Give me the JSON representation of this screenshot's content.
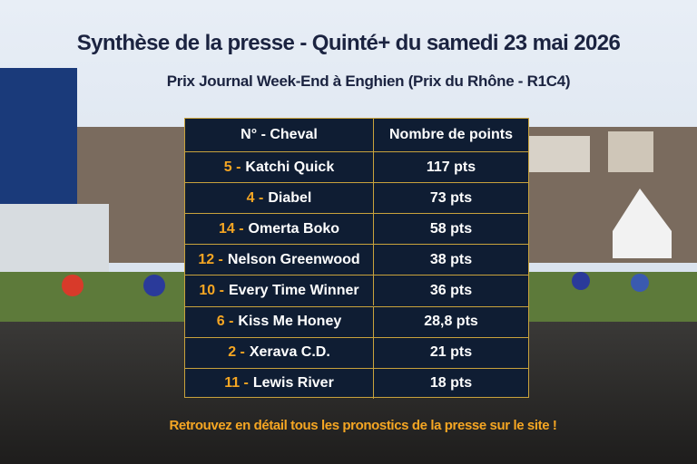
{
  "header": {
    "title": "Synthèse de la presse - Quinté+ du samedi 23 mai 2026",
    "subtitle": "Prix Journal Week-End à Enghien (Prix du Rhône - R1C4)"
  },
  "table": {
    "columns": [
      "N° - Cheval",
      "Nombre de points"
    ],
    "rows": [
      {
        "number": "5 -",
        "horse": "Katchi Quick",
        "points": "117 pts"
      },
      {
        "number": "4 -",
        "horse": "Diabel",
        "points": "73 pts"
      },
      {
        "number": "14 -",
        "horse": "Omerta Boko",
        "points": "58 pts"
      },
      {
        "number": "12 -",
        "horse": "Nelson Greenwood",
        "points": "38 pts"
      },
      {
        "number": "10 -",
        "horse": "Every Time Winner",
        "points": "36 pts"
      },
      {
        "number": "6 -",
        "horse": "Kiss Me Honey",
        "points": "28,8 pts"
      },
      {
        "number": "2 -",
        "horse": "Xerava C.D.",
        "points": "21 pts"
      },
      {
        "number": "11 -",
        "horse": "Lewis River",
        "points": "18 pts"
      }
    ]
  },
  "footer": "Retrouvez en détail tous les pronostics de la presse sur le site !"
}
